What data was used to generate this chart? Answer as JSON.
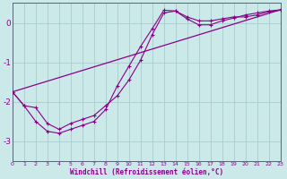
{
  "xlabel": "Windchill (Refroidissement éolien,°C)",
  "bg_color": "#cce9e9",
  "grid_color": "#aacccc",
  "line_color": "#880088",
  "yticks": [
    0,
    -1,
    -2,
    -3
  ],
  "xtick_labels": [
    "0",
    "1",
    "2",
    "3",
    "4",
    "5",
    "6",
    "7",
    "8",
    "9",
    "10",
    "11",
    "12",
    "13",
    "14",
    "15",
    "16",
    "17",
    "18",
    "19",
    "20",
    "21",
    "22",
    "23"
  ],
  "xlim": [
    0,
    23
  ],
  "ylim": [
    -3.5,
    0.5
  ],
  "line1_x": [
    0,
    1,
    2,
    3,
    4,
    5,
    6,
    7,
    8,
    9,
    10,
    11,
    12,
    13,
    14,
    15,
    16,
    17,
    18,
    19,
    20,
    21,
    22,
    23
  ],
  "line1_y": [
    -1.75,
    -2.1,
    -2.15,
    -2.55,
    -2.7,
    -2.55,
    -2.45,
    -2.35,
    -2.1,
    -1.85,
    -1.45,
    -0.95,
    -0.3,
    0.25,
    0.3,
    0.15,
    0.05,
    0.05,
    0.1,
    0.15,
    0.15,
    0.2,
    0.28,
    0.32
  ],
  "line2_x": [
    0,
    1,
    2,
    3,
    4,
    5,
    6,
    7,
    8,
    9,
    10,
    11,
    12,
    13,
    14,
    15,
    16,
    17,
    18,
    19,
    20,
    21,
    22,
    23
  ],
  "line2_y": [
    -1.75,
    -2.1,
    -2.5,
    -2.75,
    -2.8,
    -2.7,
    -2.6,
    -2.5,
    -2.2,
    -1.6,
    -1.1,
    -0.6,
    -0.15,
    0.32,
    0.3,
    0.1,
    -0.05,
    -0.05,
    0.05,
    0.12,
    0.2,
    0.25,
    0.3,
    0.33
  ],
  "line3_x": [
    0,
    23
  ],
  "line3_y": [
    -1.75,
    0.33
  ]
}
